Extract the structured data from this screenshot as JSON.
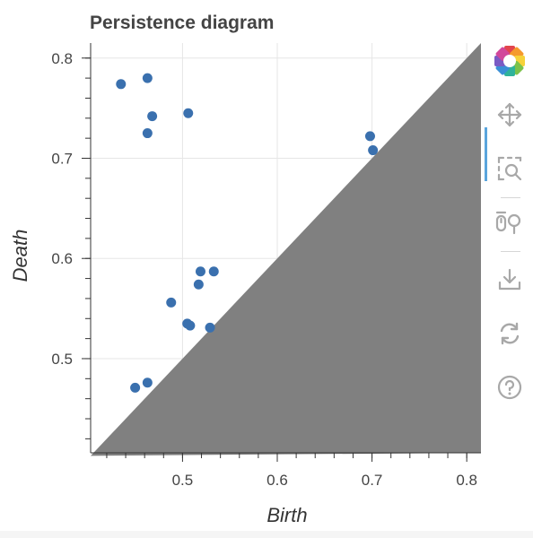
{
  "chart_data": {
    "type": "scatter",
    "title": "Persistence diagram",
    "xlabel": "Birth",
    "ylabel": "Death",
    "xlim": [
      0.403,
      0.815
    ],
    "ylim": [
      0.406,
      0.815
    ],
    "x_ticks": [
      0.5,
      0.6,
      0.7,
      0.8
    ],
    "y_ticks": [
      0.5,
      0.6,
      0.7,
      0.8
    ],
    "x_tick_labels": [
      "0.5",
      "0.6",
      "0.7",
      "0.8"
    ],
    "y_tick_labels": [
      "0.5",
      "0.6",
      "0.7",
      "0.8"
    ],
    "grid": true,
    "diagonal_fill": true,
    "points": [
      {
        "x": 0.435,
        "y": 0.774
      },
      {
        "x": 0.463,
        "y": 0.78
      },
      {
        "x": 0.468,
        "y": 0.742
      },
      {
        "x": 0.463,
        "y": 0.725
      },
      {
        "x": 0.506,
        "y": 0.745
      },
      {
        "x": 0.698,
        "y": 0.722
      },
      {
        "x": 0.701,
        "y": 0.708
      },
      {
        "x": 0.519,
        "y": 0.587
      },
      {
        "x": 0.533,
        "y": 0.587
      },
      {
        "x": 0.517,
        "y": 0.574
      },
      {
        "x": 0.488,
        "y": 0.556
      },
      {
        "x": 0.505,
        "y": 0.535
      },
      {
        "x": 0.508,
        "y": 0.533
      },
      {
        "x": 0.529,
        "y": 0.531
      },
      {
        "x": 0.45,
        "y": 0.471
      },
      {
        "x": 0.463,
        "y": 0.476
      }
    ],
    "colors": {
      "point": "#3a70ae",
      "triangle": "#808080",
      "grid": "#e6e6e6",
      "axis": "#333333"
    }
  },
  "toolbar": {
    "tools": [
      {
        "name": "bokeh-logo",
        "icon": "bokeh-logo-icon"
      },
      {
        "name": "pan-tool",
        "icon": "pan-icon"
      },
      {
        "name": "box-zoom-tool",
        "icon": "box-zoom-icon"
      },
      {
        "name": "wheel-zoom-tool",
        "icon": "wheel-zoom-icon"
      },
      {
        "name": "save-tool",
        "icon": "save-icon"
      },
      {
        "name": "reset-tool",
        "icon": "reset-icon"
      },
      {
        "name": "help-tool",
        "icon": "help-icon"
      }
    ],
    "active_accent": "#5aa5dd"
  }
}
